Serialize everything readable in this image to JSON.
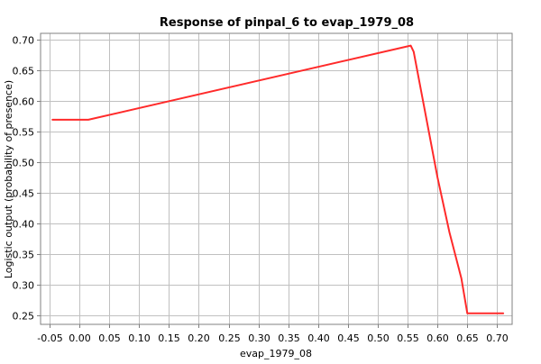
{
  "chart_data": {
    "type": "line",
    "title": "Response of pinpal_6 to evap_1979_08",
    "xlabel": "evap_1979_08",
    "ylabel": "Logistic output (probability of presence)",
    "xlim": [
      -0.065,
      0.725
    ],
    "ylim": [
      0.235,
      0.71
    ],
    "xticks": [
      -0.05,
      0.0,
      0.05,
      0.1,
      0.15,
      0.2,
      0.25,
      0.3,
      0.35,
      0.4,
      0.45,
      0.5,
      0.55,
      0.6,
      0.65,
      0.7
    ],
    "xtick_labels": [
      "-0.05",
      "0.00",
      "0.05",
      "0.10",
      "0.15",
      "0.20",
      "0.25",
      "0.30",
      "0.35",
      "0.40",
      "0.45",
      "0.50",
      "0.55",
      "0.60",
      "0.65",
      "0.70"
    ],
    "yticks": [
      0.25,
      0.3,
      0.35,
      0.4,
      0.45,
      0.5,
      0.55,
      0.6,
      0.65,
      0.7
    ],
    "ytick_labels": [
      "0.25",
      "0.30",
      "0.35",
      "0.40",
      "0.45",
      "0.50",
      "0.55",
      "0.60",
      "0.65",
      "0.70"
    ],
    "grid": true,
    "line_color": "#ff2a2a",
    "grid_color": "#c0c0c0",
    "series": [
      {
        "x": [
          -0.045,
          0.015,
          0.555,
          0.56,
          0.6,
          0.62,
          0.64,
          0.65,
          0.71
        ],
        "y": [
          0.569,
          0.569,
          0.69,
          0.68,
          0.475,
          0.385,
          0.31,
          0.253,
          0.253
        ]
      }
    ]
  }
}
